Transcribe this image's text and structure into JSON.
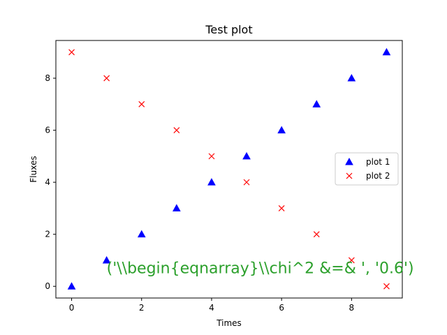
{
  "chart_data": {
    "type": "scatter",
    "title": "Test plot",
    "xlabel": "Times",
    "ylabel": "Fluxes",
    "xlim": [
      -0.45,
      9.45
    ],
    "ylim": [
      -0.45,
      9.45
    ],
    "xticks": [
      0,
      2,
      4,
      6,
      8
    ],
    "yticks": [
      0,
      2,
      4,
      6,
      8
    ],
    "grid": false,
    "legend_position": "center-right",
    "series": [
      {
        "name": "plot 1",
        "marker": "triangle-up",
        "color": "#0000ff",
        "points": [
          [
            0,
            0
          ],
          [
            1,
            1
          ],
          [
            2,
            2
          ],
          [
            3,
            3
          ],
          [
            4,
            4
          ],
          [
            5,
            5
          ],
          [
            6,
            6
          ],
          [
            7,
            7
          ],
          [
            8,
            8
          ],
          [
            9,
            9
          ]
        ]
      },
      {
        "name": "plot 2",
        "marker": "x",
        "color": "#ff0000",
        "points": [
          [
            0,
            9
          ],
          [
            1,
            8
          ],
          [
            2,
            7
          ],
          [
            3,
            6
          ],
          [
            4,
            5
          ],
          [
            5,
            4
          ],
          [
            6,
            3
          ],
          [
            7,
            2
          ],
          [
            8,
            1
          ],
          [
            9,
            0
          ]
        ]
      }
    ],
    "annotation": {
      "text": "('\\\\begin{eqnarray}\\\\chi^2 &=& ', '0.6')",
      "color": "#2ca02c",
      "x": 1,
      "y": 0.5
    }
  }
}
